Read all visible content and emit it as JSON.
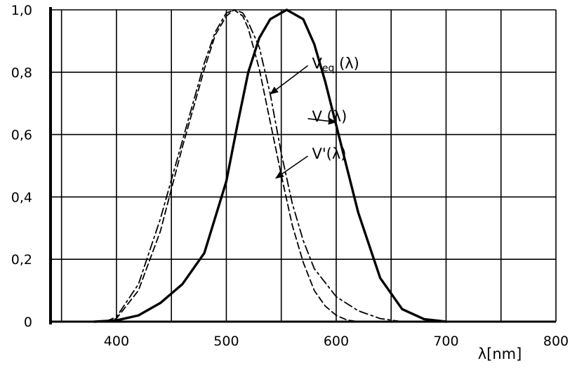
{
  "chart_data": {
    "type": "line",
    "xlabel": "λ[nm]",
    "ylabel": "",
    "xlim": [
      340,
      800
    ],
    "ylim": [
      0,
      1.0
    ],
    "grid": true,
    "x_ticks": [
      400,
      500,
      600,
      700,
      800
    ],
    "x_tick_labels": [
      "400",
      "500",
      "600",
      "700",
      "800"
    ],
    "y_ticks": [
      0,
      0.2,
      0.4,
      0.6,
      0.8,
      1.0
    ],
    "y_tick_labels": [
      "0",
      "0,2",
      "0,4",
      "0,6",
      "0,8",
      "1,0"
    ],
    "series": [
      {
        "name": "V (λ)",
        "style": "solid",
        "x": [
          380,
          400,
          420,
          440,
          460,
          480,
          500,
          510,
          520,
          530,
          540,
          555,
          570,
          580,
          590,
          600,
          610,
          620,
          640,
          660,
          680,
          700
        ],
        "y": [
          0.0,
          0.004,
          0.02,
          0.06,
          0.12,
          0.22,
          0.45,
          0.63,
          0.8,
          0.91,
          0.97,
          1.0,
          0.97,
          0.89,
          0.77,
          0.63,
          0.49,
          0.35,
          0.14,
          0.04,
          0.008,
          0.0
        ]
      },
      {
        "name": "V'(λ)",
        "style": "dashed",
        "x": [
          390,
          400,
          420,
          440,
          460,
          480,
          490,
          500,
          507,
          515,
          520,
          530,
          540,
          550,
          560,
          570,
          580,
          590,
          600,
          610,
          620
        ],
        "y": [
          0.0,
          0.01,
          0.1,
          0.29,
          0.56,
          0.81,
          0.92,
          0.98,
          1.0,
          0.98,
          0.94,
          0.81,
          0.64,
          0.47,
          0.31,
          0.19,
          0.1,
          0.05,
          0.02,
          0.005,
          0.0
        ]
      },
      {
        "name": "Veq(λ)",
        "style": "dash-dot",
        "x": [
          390,
          400,
          420,
          440,
          460,
          480,
          490,
          500,
          508,
          515,
          520,
          530,
          540,
          550,
          560,
          570,
          580,
          600,
          620,
          640,
          660
        ],
        "y": [
          0.0,
          0.015,
          0.12,
          0.33,
          0.58,
          0.83,
          0.93,
          0.99,
          1.0,
          0.99,
          0.96,
          0.88,
          0.73,
          0.54,
          0.38,
          0.26,
          0.17,
          0.08,
          0.035,
          0.01,
          0.0
        ]
      }
    ],
    "annotations": [
      {
        "label_parts": [
          "V",
          "eq",
          " (λ)"
        ],
        "target_series": "Veq(λ)",
        "label_xy": [
          578,
          0.83
        ],
        "arrow_to": [
          540,
          0.73
        ]
      },
      {
        "label_parts": [
          "V (λ)"
        ],
        "target_series": "V (λ)",
        "label_xy": [
          578,
          0.66
        ],
        "arrow_to": [
          600,
          0.64
        ]
      },
      {
        "label_parts": [
          "V'(λ)"
        ],
        "target_series": "V'(λ)",
        "label_xy": [
          578,
          0.54
        ],
        "arrow_to": [
          545,
          0.46
        ]
      }
    ]
  }
}
